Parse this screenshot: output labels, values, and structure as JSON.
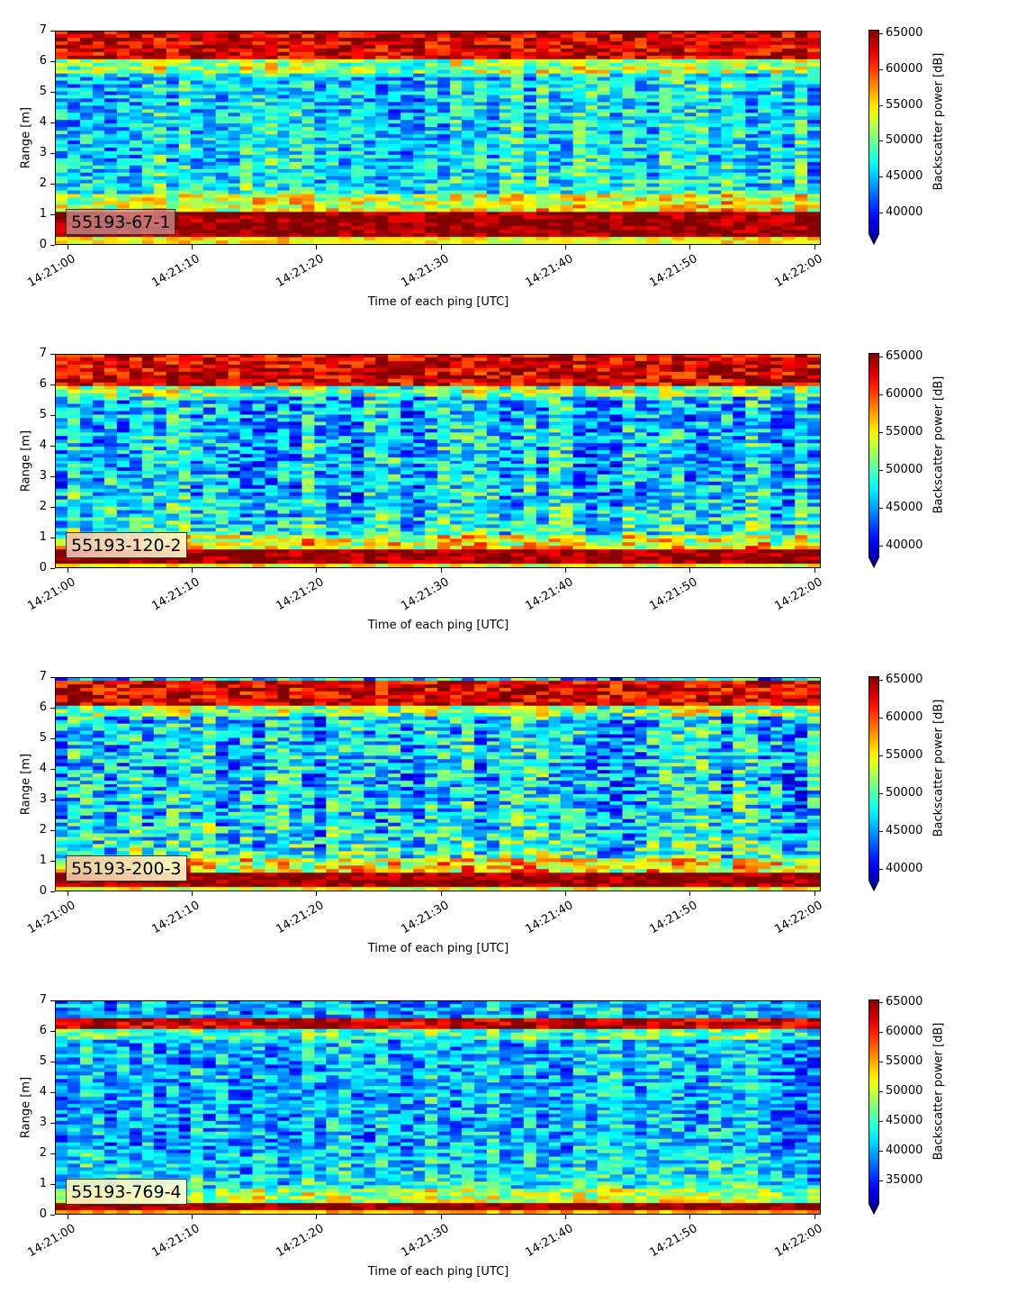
{
  "chart_data": [
    {
      "type": "heatmap",
      "label": "55193-67-1",
      "xlabel": "Time of each ping [UTC]",
      "ylabel": "Range [m]",
      "colorbar_label": "Backscatter power [dB]",
      "colormap": "jet",
      "colorbar_extend": "min",
      "x_ticks": [
        "14:21:00",
        "14:21:10",
        "14:21:20",
        "14:21:30",
        "14:21:40",
        "14:21:50",
        "14:22:00"
      ],
      "y_ticks": [
        "0",
        "1",
        "2",
        "3",
        "4",
        "5",
        "6",
        "7"
      ],
      "ylim": [
        0,
        7
      ],
      "clim": [
        37000,
        65500
      ],
      "colorbar_ticks": [
        "40000",
        "45000",
        "50000",
        "55000",
        "60000",
        "65000"
      ],
      "features": {
        "bottom_band_m": [
          0.2,
          1.1
        ],
        "top_band_m": [
          6.05,
          7.0
        ],
        "background": [
          43000,
          52000
        ]
      }
    },
    {
      "type": "heatmap",
      "label": "55193-120-2",
      "xlabel": "Time of each ping [UTC]",
      "ylabel": "Range [m]",
      "colorbar_label": "Backscatter power [dB]",
      "colormap": "jet",
      "colorbar_extend": "min",
      "x_ticks": [
        "14:21:00",
        "14:21:10",
        "14:21:20",
        "14:21:30",
        "14:21:40",
        "14:21:50",
        "14:22:00"
      ],
      "y_ticks": [
        "0",
        "1",
        "2",
        "3",
        "4",
        "5",
        "6",
        "7"
      ],
      "ylim": [
        0,
        7
      ],
      "clim": [
        38500,
        65500
      ],
      "colorbar_ticks": [
        "40000",
        "45000",
        "50000",
        "55000",
        "60000",
        "65000"
      ],
      "features": {
        "bottom_band_m": [
          0.15,
          0.6
        ],
        "top_band_m": [
          6.0,
          7.0
        ],
        "background": [
          42000,
          52000
        ]
      }
    },
    {
      "type": "heatmap",
      "label": "55193-200-3",
      "xlabel": "Time of each ping [UTC]",
      "ylabel": "Range [m]",
      "colorbar_label": "Backscatter power [dB]",
      "colormap": "jet",
      "colorbar_extend": "min",
      "x_ticks": [
        "14:21:00",
        "14:21:10",
        "14:21:20",
        "14:21:30",
        "14:21:40",
        "14:21:50",
        "14:22:00"
      ],
      "y_ticks": [
        "0",
        "1",
        "2",
        "3",
        "4",
        "5",
        "6",
        "7"
      ],
      "ylim": [
        0,
        7
      ],
      "clim": [
        38500,
        65500
      ],
      "colorbar_ticks": [
        "40000",
        "45000",
        "50000",
        "55000",
        "60000",
        "65000"
      ],
      "features": {
        "bottom_band_m": [
          0.15,
          0.6
        ],
        "top_band_m": [
          6.1,
          6.9
        ],
        "background": [
          42000,
          53000
        ]
      }
    },
    {
      "type": "heatmap",
      "label": "55193-769-4",
      "xlabel": "Time of each ping [UTC]",
      "ylabel": "Range [m]",
      "colorbar_label": "Backscatter power [dB]",
      "colormap": "jet",
      "colorbar_extend": "min",
      "x_ticks": [
        "14:21:00",
        "14:21:10",
        "14:21:20",
        "14:21:30",
        "14:21:40",
        "14:21:50",
        "14:22:00"
      ],
      "y_ticks": [
        "0",
        "1",
        "2",
        "3",
        "4",
        "5",
        "6",
        "7"
      ],
      "ylim": [
        0,
        7
      ],
      "clim": [
        31000,
        65500
      ],
      "colorbar_ticks": [
        "35000",
        "40000",
        "45000",
        "50000",
        "55000",
        "60000",
        "65000"
      ],
      "features": {
        "bottom_band_m": [
          0.1,
          0.3
        ],
        "top_band_m": [
          6.1,
          6.4
        ],
        "background": [
          36000,
          47000
        ]
      }
    }
  ],
  "colors": {
    "tag_border": "#333333"
  }
}
